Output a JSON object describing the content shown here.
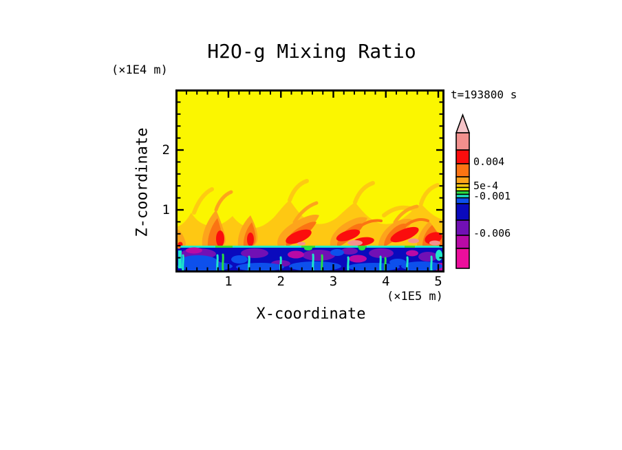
{
  "title": "H2O-g Mixing Ratio",
  "annotations": {
    "time_label": "t=193800 s",
    "y_axis_unit": "(×1E4 m)",
    "x_axis_unit": "(×1E5 m)"
  },
  "axes": {
    "x": {
      "label": "X-coordinate",
      "tick_labels": [
        "1",
        "2",
        "3",
        "4",
        "5"
      ]
    },
    "y": {
      "label": "Z-coordinate",
      "tick_labels": [
        "1",
        "2"
      ]
    }
  },
  "colorbar": {
    "tip_color": "#F6C4C8",
    "segments": [
      {
        "color": "#F2908D",
        "h": 25
      },
      {
        "color": "#FB0D0D",
        "h": 20,
        "label": "0.004"
      },
      {
        "color": "#FB7413",
        "h": 19
      },
      {
        "color": "#FDA41C",
        "h": 10
      },
      {
        "color": "#FEC813",
        "h": 5.5,
        "label": "5e-4"
      },
      {
        "color": "#FBF600",
        "h": 5
      },
      {
        "color": "#2ADF42",
        "h": 5
      },
      {
        "color": "#1EE9C9",
        "h": 5,
        "label": "-0.001"
      },
      {
        "color": "#0D50EC",
        "h": 8.5
      },
      {
        "color": "#0A0ABD",
        "h": 24
      },
      {
        "color": "#7110B5",
        "h": 22,
        "label": "-0.006"
      },
      {
        "color": "#B90AA6",
        "h": 19
      },
      {
        "color": "#EC0E9C",
        "h": 29
      }
    ]
  },
  "palette": {
    "yellow": "#FBF600",
    "gold": "#FEC813",
    "orange": "#FDA41C",
    "orangered": "#FB7413",
    "red": "#FB0D0D",
    "salmon": "#F5928E",
    "pink": "#F6C4C8",
    "navy": "#0A0ABD",
    "blue": "#0D50EC",
    "purple": "#7110B5",
    "darkmagenta": "#B90AA6",
    "magenta": "#EC0E9C",
    "cyan": "#1EE9C9",
    "green": "#2ADF42"
  },
  "chart_data": {
    "type": "heatmap",
    "title": "H2O-g Mixing Ratio",
    "xlabel": "X-coordinate",
    "ylabel": "Z-coordinate",
    "x_unit": "×1E5 m",
    "y_unit": "×1E4 m",
    "x_range": [
      0,
      5.1
    ],
    "y_range": [
      0,
      3.0
    ],
    "x_ticks_major": [
      1,
      2,
      3,
      4,
      5
    ],
    "y_ticks_major": [
      1,
      2
    ],
    "minor_ticks_per_unit": 5,
    "grid": false,
    "legend_position": "right-colorbar-with-arrow-tip",
    "time_annotation": "t=193800 s",
    "colorbar_labeled_levels": [
      0.004,
      0.0005,
      -0.001,
      -0.006
    ],
    "colorbar_label_texts": [
      "0.004",
      "5e-4",
      "-0.001",
      "-0.006"
    ],
    "palette_top_to_bottom": [
      "#F6C4C8",
      "#F2908D",
      "#FB0D0D",
      "#FB7413",
      "#FDA41C",
      "#FEC813",
      "#FBF600",
      "#2ADF42",
      "#1EE9C9",
      "#0D50EC",
      "#0A0ABD",
      "#7110B5",
      "#B90AA6",
      "#EC0E9C"
    ],
    "field_summary": [
      {
        "region": "upper free atmosphere",
        "z_from": 1.05,
        "z_to": 3.0,
        "dominant_color": "#FBF600",
        "approx_value": "0 to 5e-4"
      },
      {
        "region": "plume band above interface",
        "z_from": 0.42,
        "z_to": 1.05,
        "dominant_colors": [
          "#FEC813",
          "#FDA41C",
          "#FB7413",
          "#FB0D0D",
          "#F5928E"
        ],
        "approx_value": "5e-4 to 0.008",
        "note": "tilted wispy updraft plumes with red cores and small salmon maxima just above the interface"
      },
      {
        "region": "boundary layer below sharp interface",
        "z_from": 0.0,
        "z_to": 0.42,
        "dominant_colors": [
          "#0A0ABD",
          "#0D50EC",
          "#7110B5",
          "#B90AA6",
          "#1EE9C9",
          "#2ADF42"
        ],
        "approx_value": "-0.001 to -0.008",
        "note": "thin cyan-green line at the interface; navy layer containing purple and magenta blobs with vertical cyan-green streaks"
      }
    ]
  }
}
